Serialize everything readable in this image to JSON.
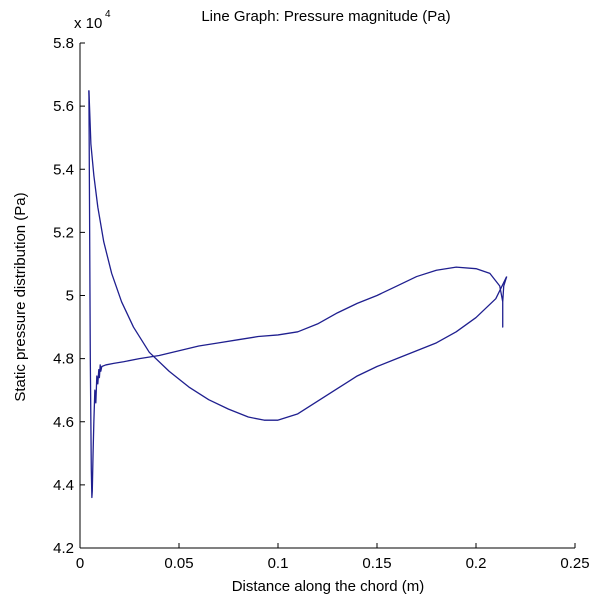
{
  "chart_data": {
    "type": "line",
    "title": "Line Graph: Pressure magnitude (Pa)",
    "xlabel": "Distance along the chord (m)",
    "ylabel": "Static pressure distribution (Pa)",
    "y_multiplier_base": "x 10",
    "y_multiplier_exp": "4",
    "xlim": [
      0,
      0.25
    ],
    "ylim": [
      4.2,
      5.8
    ],
    "x_ticks": [
      0,
      0.05,
      0.1,
      0.15,
      0.2,
      0.25
    ],
    "x_tick_labels": [
      "0",
      "0.05",
      "0.1",
      "0.15",
      "0.2",
      "0.25"
    ],
    "y_ticks": [
      4.2,
      4.4,
      4.6,
      4.8,
      5.0,
      5.2,
      5.4,
      5.6,
      5.8
    ],
    "y_tick_labels": [
      "4.2",
      "4.4",
      "4.6",
      "4.8",
      "5",
      "5.2",
      "5.4",
      "5.6",
      "5.8"
    ],
    "grid": false,
    "series_color": "#1f1f8f",
    "series": [
      {
        "points": [
          [
            0.0045,
            5.65
          ],
          [
            0.0048,
            5.6
          ],
          [
            0.0055,
            5.48
          ],
          [
            0.007,
            5.38
          ],
          [
            0.009,
            5.28
          ],
          [
            0.012,
            5.17
          ],
          [
            0.016,
            5.07
          ],
          [
            0.021,
            4.98
          ],
          [
            0.027,
            4.9
          ],
          [
            0.035,
            4.82
          ],
          [
            0.045,
            4.76
          ],
          [
            0.055,
            4.71
          ],
          [
            0.065,
            4.67
          ],
          [
            0.075,
            4.64
          ],
          [
            0.085,
            4.615
          ],
          [
            0.093,
            4.605
          ],
          [
            0.1,
            4.605
          ],
          [
            0.11,
            4.625
          ],
          [
            0.12,
            4.665
          ],
          [
            0.13,
            4.705
          ],
          [
            0.14,
            4.745
          ],
          [
            0.15,
            4.775
          ],
          [
            0.16,
            4.8
          ],
          [
            0.17,
            4.825
          ],
          [
            0.18,
            4.85
          ],
          [
            0.19,
            4.885
          ],
          [
            0.2,
            4.93
          ],
          [
            0.21,
            4.99
          ],
          [
            0.2155,
            5.06
          ]
        ]
      },
      {
        "points": [
          [
            0.2155,
            5.06
          ],
          [
            0.214,
            5.03
          ],
          [
            0.2135,
            4.98
          ],
          [
            0.2135,
            4.9
          ],
          [
            0.2135,
            4.98
          ],
          [
            0.212,
            5.03
          ],
          [
            0.207,
            5.07
          ],
          [
            0.2,
            5.085
          ],
          [
            0.19,
            5.09
          ],
          [
            0.18,
            5.08
          ],
          [
            0.17,
            5.06
          ],
          [
            0.16,
            5.03
          ],
          [
            0.15,
            5.0
          ],
          [
            0.14,
            4.975
          ],
          [
            0.13,
            4.945
          ],
          [
            0.12,
            4.91
          ],
          [
            0.11,
            4.885
          ],
          [
            0.1,
            4.875
          ],
          [
            0.09,
            4.87
          ],
          [
            0.08,
            4.86
          ],
          [
            0.07,
            4.85
          ],
          [
            0.06,
            4.84
          ],
          [
            0.05,
            4.825
          ],
          [
            0.04,
            4.81
          ],
          [
            0.03,
            4.8
          ],
          [
            0.022,
            4.79
          ],
          [
            0.017,
            4.785
          ],
          [
            0.013,
            4.78
          ],
          [
            0.011,
            4.775
          ],
          [
            0.0105,
            4.76
          ],
          [
            0.0102,
            4.78
          ],
          [
            0.0098,
            4.74
          ],
          [
            0.0095,
            4.765
          ],
          [
            0.009,
            4.72
          ],
          [
            0.0085,
            4.745
          ],
          [
            0.008,
            4.66
          ],
          [
            0.0075,
            4.7
          ],
          [
            0.007,
            4.6
          ],
          [
            0.0066,
            4.5
          ],
          [
            0.0062,
            4.38
          ],
          [
            0.006,
            4.36
          ],
          [
            0.0057,
            4.45
          ],
          [
            0.0052,
            4.8
          ],
          [
            0.0048,
            5.3
          ],
          [
            0.0045,
            5.65
          ]
        ]
      }
    ]
  }
}
